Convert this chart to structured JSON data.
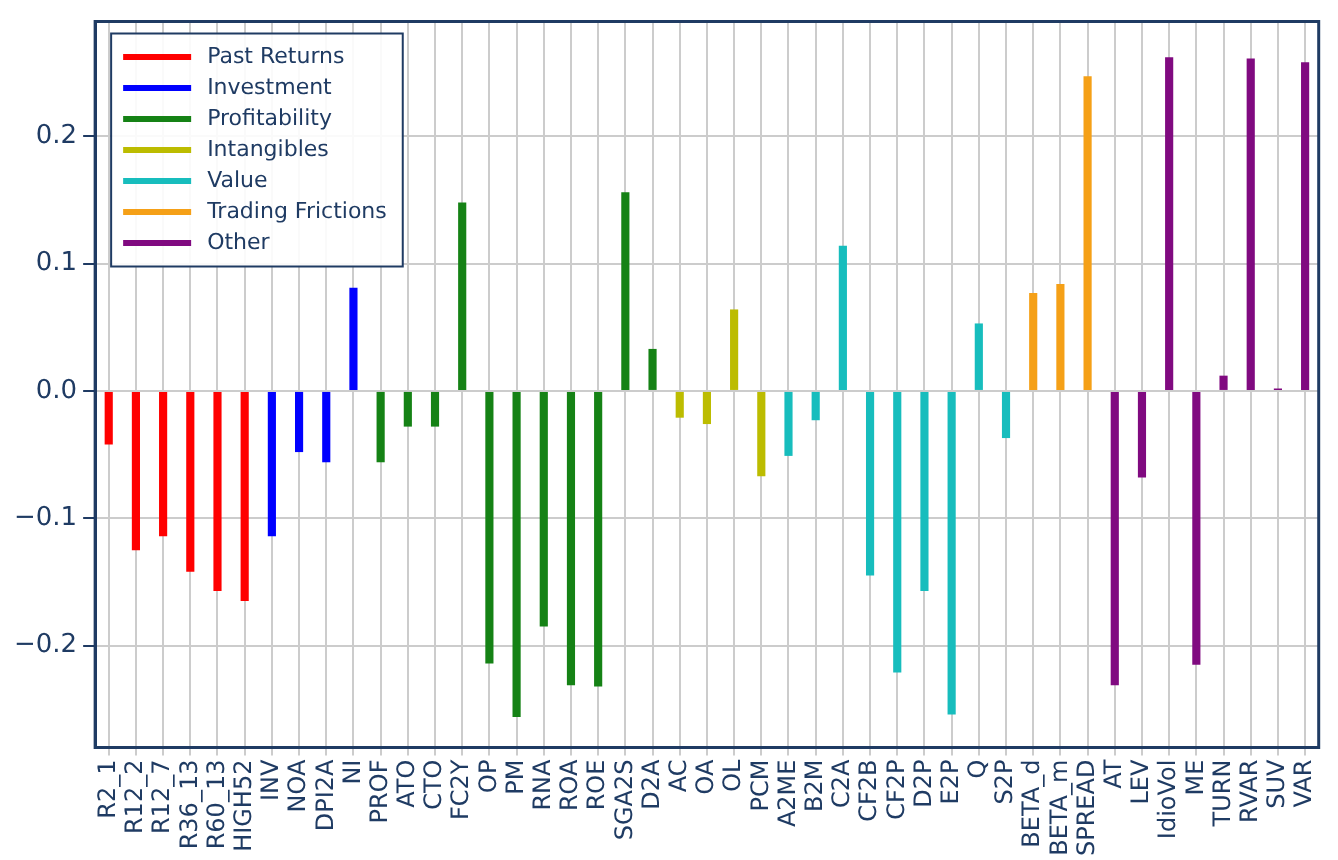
{
  "chart_data": {
    "type": "bar",
    "categories": [
      "R2_1",
      "R12_2",
      "R12_7",
      "R36_13",
      "R60_13",
      "HIGH52",
      "INV",
      "NOA",
      "DPI2A",
      "NI",
      "PROF",
      "ATO",
      "CTO",
      "FC2Y",
      "OP",
      "PM",
      "RNA",
      "ROA",
      "ROE",
      "SGA2S",
      "D2A",
      "AC",
      "OA",
      "OL",
      "PCM",
      "A2ME",
      "B2M",
      "C2A",
      "CF2B",
      "CF2P",
      "D2P",
      "E2P",
      "Q",
      "S2P",
      "BETA_d",
      "BETA_m",
      "SPREAD",
      "AT",
      "LEV",
      "IdioVol",
      "ME",
      "TURN",
      "RVAR",
      "SUV",
      "VAR"
    ],
    "series": [
      {
        "name": "Past Returns",
        "color": "#ff0000",
        "values": [
          -0.042,
          -0.125,
          -0.114,
          -0.142,
          -0.157,
          -0.165,
          null,
          null,
          null,
          null,
          null,
          null,
          null,
          null,
          null,
          null,
          null,
          null,
          null,
          null,
          null,
          null,
          null,
          null,
          null,
          null,
          null,
          null,
          null,
          null,
          null,
          null,
          null,
          null,
          null,
          null,
          null,
          null,
          null,
          null,
          null,
          null,
          null,
          null,
          null
        ]
      },
      {
        "name": "Investment",
        "color": "#0000ff",
        "values": [
          null,
          null,
          null,
          null,
          null,
          null,
          -0.114,
          -0.048,
          -0.056,
          0.081,
          null,
          null,
          null,
          null,
          null,
          null,
          null,
          null,
          null,
          null,
          null,
          null,
          null,
          null,
          null,
          null,
          null,
          null,
          null,
          null,
          null,
          null,
          null,
          null,
          null,
          null,
          null,
          null,
          null,
          null,
          null,
          null,
          null,
          null,
          null
        ]
      },
      {
        "name": "Profitability",
        "color": "#158215",
        "values": [
          null,
          null,
          null,
          null,
          null,
          null,
          null,
          null,
          null,
          null,
          -0.056,
          -0.028,
          -0.028,
          0.148,
          -0.214,
          -0.256,
          -0.185,
          -0.231,
          -0.232,
          0.156,
          0.033,
          null,
          null,
          null,
          null,
          null,
          null,
          null,
          null,
          null,
          null,
          null,
          null,
          null,
          null,
          null,
          null,
          null,
          null,
          null,
          null,
          null,
          null,
          null,
          null
        ]
      },
      {
        "name": "Intangibles",
        "color": "#bcbc00",
        "values": [
          null,
          null,
          null,
          null,
          null,
          null,
          null,
          null,
          null,
          null,
          null,
          null,
          null,
          null,
          null,
          null,
          null,
          null,
          null,
          null,
          null,
          -0.021,
          -0.026,
          0.064,
          -0.067,
          null,
          null,
          null,
          null,
          null,
          null,
          null,
          null,
          null,
          null,
          null,
          null,
          null,
          null,
          null,
          null,
          null,
          null,
          null,
          null
        ]
      },
      {
        "name": "Value",
        "color": "#17bdbd",
        "values": [
          null,
          null,
          null,
          null,
          null,
          null,
          null,
          null,
          null,
          null,
          null,
          null,
          null,
          null,
          null,
          null,
          null,
          null,
          null,
          null,
          null,
          null,
          null,
          null,
          null,
          -0.051,
          -0.023,
          0.114,
          -0.145,
          -0.221,
          -0.157,
          -0.254,
          0.053,
          -0.037,
          null,
          null,
          null,
          null,
          null,
          null,
          null,
          null,
          null,
          null,
          null
        ]
      },
      {
        "name": "Trading Frictions",
        "color": "#f5a017",
        "values": [
          null,
          null,
          null,
          null,
          null,
          null,
          null,
          null,
          null,
          null,
          null,
          null,
          null,
          null,
          null,
          null,
          null,
          null,
          null,
          null,
          null,
          null,
          null,
          null,
          null,
          null,
          null,
          null,
          null,
          null,
          null,
          null,
          null,
          null,
          0.077,
          0.084,
          0.247,
          null,
          null,
          null,
          null,
          null,
          null,
          null,
          null
        ]
      },
      {
        "name": "Other",
        "color": "#800a80",
        "values": [
          null,
          null,
          null,
          null,
          null,
          null,
          null,
          null,
          null,
          null,
          null,
          null,
          null,
          null,
          null,
          null,
          null,
          null,
          null,
          null,
          null,
          null,
          null,
          null,
          null,
          null,
          null,
          null,
          null,
          null,
          null,
          null,
          null,
          null,
          null,
          null,
          null,
          -0.231,
          -0.068,
          0.262,
          -0.215,
          0.012,
          0.261,
          0.002,
          0.258
        ]
      }
    ],
    "ylim": [
      -0.28,
      0.29
    ],
    "yticks": [
      {
        "value": -0.2,
        "label": "−0.2"
      },
      {
        "value": -0.1,
        "label": "−0.1"
      },
      {
        "value": 0,
        "label": "0.0"
      },
      {
        "value": 0.1,
        "label": "0.1"
      },
      {
        "value": 0.2,
        "label": "0.2"
      }
    ],
    "grid": true,
    "legend": "top left"
  }
}
